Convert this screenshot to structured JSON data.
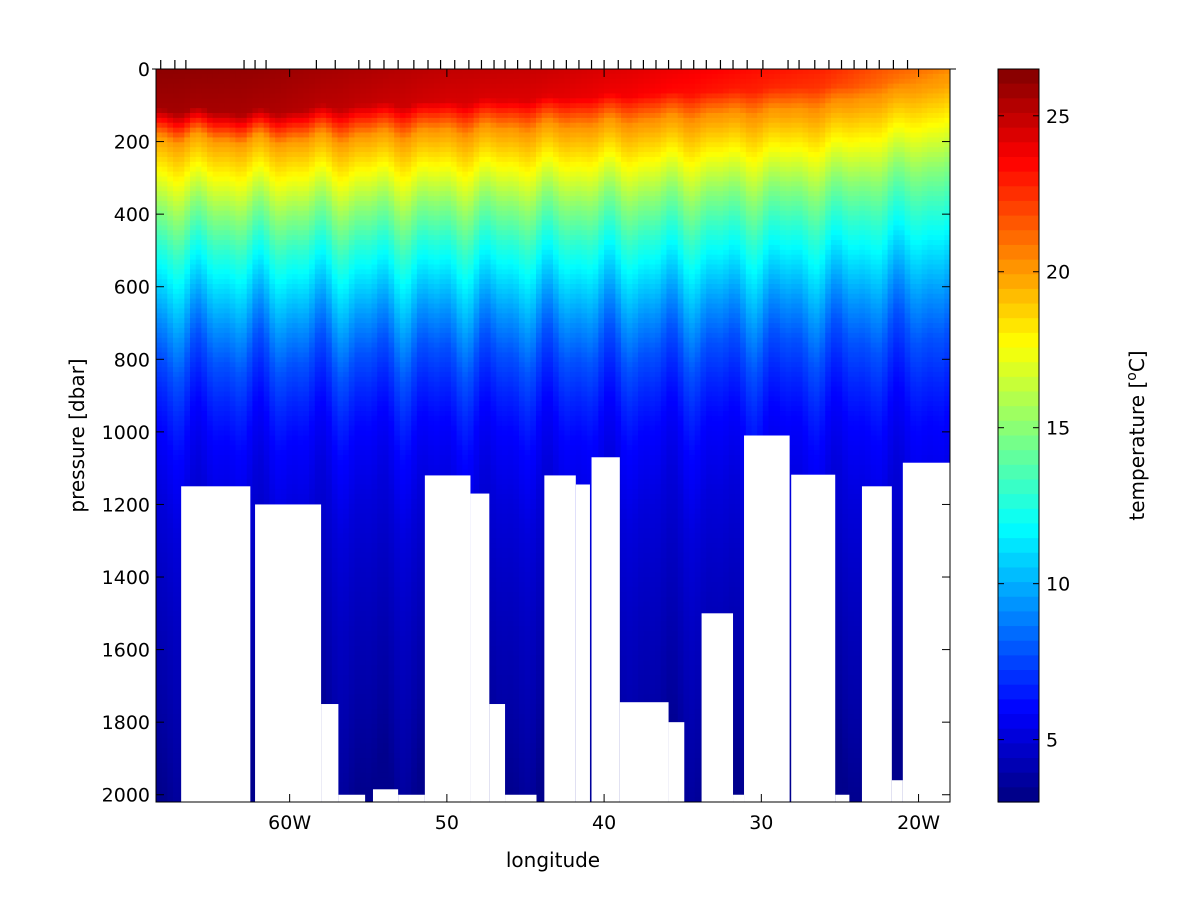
{
  "chart_data": {
    "type": "heatmap",
    "xlabel": "longitude",
    "ylabel": "pressure [dbar]",
    "colorbar_label_main": "temperature [",
    "colorbar_label_sup": "o",
    "colorbar_label_end": "C]",
    "xlim": [
      68.5,
      18
    ],
    "ylim": [
      0,
      2020
    ],
    "x_ticks": [
      {
        "value": 60,
        "label": "60W"
      },
      {
        "value": 50,
        "label": "50"
      },
      {
        "value": 40,
        "label": "40"
      },
      {
        "value": 30,
        "label": "30"
      },
      {
        "value": 20,
        "label": "20W"
      }
    ],
    "y_ticks": [
      {
        "value": 0,
        "label": "0"
      },
      {
        "value": 200,
        "label": "200"
      },
      {
        "value": 400,
        "label": "400"
      },
      {
        "value": 600,
        "label": "600"
      },
      {
        "value": 800,
        "label": "800"
      },
      {
        "value": 1000,
        "label": "1000"
      },
      {
        "value": 1200,
        "label": "1200"
      },
      {
        "value": 1400,
        "label": "1400"
      },
      {
        "value": 1600,
        "label": "1600"
      },
      {
        "value": 1800,
        "label": "1800"
      },
      {
        "value": 2000,
        "label": "2000"
      }
    ],
    "colorbar": {
      "range": [
        3,
        26.5
      ],
      "ticks": [
        {
          "value": 5,
          "label": "5"
        },
        {
          "value": 10,
          "label": "10"
        },
        {
          "value": 15,
          "label": "15"
        },
        {
          "value": 20,
          "label": "20"
        },
        {
          "value": 25,
          "label": "25"
        }
      ],
      "colormap": "jet"
    },
    "station_longitudes": [
      68.2,
      67.3,
      66.6,
      62.9,
      62.2,
      61.5,
      58.3,
      57.1,
      55.6,
      54.9,
      54.0,
      53.1,
      52.1,
      51.2,
      50.4,
      49.5,
      48.6,
      47.8,
      47.0,
      46.3,
      45.5,
      44.7,
      44.0,
      43.2,
      42.4,
      41.6,
      40.8,
      40.0,
      39.1,
      38.3,
      37.5,
      36.7,
      35.9,
      35.1,
      34.3,
      33.5,
      32.6,
      31.8,
      30.9,
      29.9,
      28.3,
      27.6,
      26.6,
      25.7,
      24.9,
      24.1,
      23.3,
      22.5,
      21.6,
      20.7
    ],
    "surface_temperature_profile": [
      {
        "lon": 68.5,
        "t_surface": 26.2,
        "mixed_depth": 110,
        "t20_depth": 190
      },
      {
        "lon": 62.0,
        "t_surface": 26.0,
        "mixed_depth": 120,
        "t20_depth": 200
      },
      {
        "lon": 56.0,
        "t_surface": 25.5,
        "mixed_depth": 100,
        "t20_depth": 190
      },
      {
        "lon": 50.0,
        "t_surface": 25.0,
        "mixed_depth": 90,
        "t20_depth": 175
      },
      {
        "lon": 44.0,
        "t_surface": 24.8,
        "mixed_depth": 80,
        "t20_depth": 165
      },
      {
        "lon": 38.0,
        "t_surface": 24.2,
        "mixed_depth": 70,
        "t20_depth": 150
      },
      {
        "lon": 32.0,
        "t_surface": 23.5,
        "mixed_depth": 60,
        "t20_depth": 130
      },
      {
        "lon": 26.0,
        "t_surface": 22.8,
        "mixed_depth": 50,
        "t20_depth": 110
      },
      {
        "lon": 22.0,
        "t_surface": 21.5,
        "mixed_depth": 40,
        "t20_depth": 70
      },
      {
        "lon": 18.0,
        "t_surface": 20.5,
        "mixed_depth": 15,
        "t20_depth": 30
      }
    ],
    "deep_temperature_profile": [
      {
        "p": 200,
        "t": 19.5
      },
      {
        "p": 300,
        "t": 17.2
      },
      {
        "p": 400,
        "t": 14.8
      },
      {
        "p": 500,
        "t": 12.8
      },
      {
        "p": 600,
        "t": 11.0
      },
      {
        "p": 700,
        "t": 9.3
      },
      {
        "p": 800,
        "t": 7.8
      },
      {
        "p": 900,
        "t": 6.8
      },
      {
        "p": 1000,
        "t": 6.0
      },
      {
        "p": 1200,
        "t": 5.1
      },
      {
        "p": 1400,
        "t": 4.6
      },
      {
        "p": 1600,
        "t": 4.2
      },
      {
        "p": 1800,
        "t": 3.8
      },
      {
        "p": 2020,
        "t": 3.3
      }
    ],
    "no_data_regions": [
      {
        "lon_start": 66.9,
        "lon_end": 62.5,
        "depth_top": 1150
      },
      {
        "lon_start": 62.2,
        "lon_end": 58.0,
        "depth_top": 1200
      },
      {
        "lon_start": 58.0,
        "lon_end": 56.9,
        "depth_top": 1750
      },
      {
        "lon_start": 56.9,
        "lon_end": 55.2,
        "depth_top": 2000
      },
      {
        "lon_start": 54.7,
        "lon_end": 53.1,
        "depth_top": 1985
      },
      {
        "lon_start": 53.1,
        "lon_end": 51.4,
        "depth_top": 2000
      },
      {
        "lon_start": 51.4,
        "lon_end": 48.5,
        "depth_top": 1120
      },
      {
        "lon_start": 48.5,
        "lon_end": 47.3,
        "depth_top": 1170
      },
      {
        "lon_start": 47.3,
        "lon_end": 46.3,
        "depth_top": 1750
      },
      {
        "lon_start": 46.3,
        "lon_end": 44.3,
        "depth_top": 2000
      },
      {
        "lon_start": 43.8,
        "lon_end": 41.8,
        "depth_top": 1120
      },
      {
        "lon_start": 41.8,
        "lon_end": 40.9,
        "depth_top": 1145
      },
      {
        "lon_start": 40.8,
        "lon_end": 39.0,
        "depth_top": 1070
      },
      {
        "lon_start": 39.0,
        "lon_end": 35.9,
        "depth_top": 1745
      },
      {
        "lon_start": 35.9,
        "lon_end": 34.9,
        "depth_top": 1800
      },
      {
        "lon_start": 33.8,
        "lon_end": 31.8,
        "depth_top": 1500
      },
      {
        "lon_start": 31.8,
        "lon_end": 31.1,
        "depth_top": 2000
      },
      {
        "lon_start": 31.1,
        "lon_end": 28.2,
        "depth_top": 1010
      },
      {
        "lon_start": 28.1,
        "lon_end": 25.3,
        "depth_top": 1118
      },
      {
        "lon_start": 25.3,
        "lon_end": 24.4,
        "depth_top": 2000
      },
      {
        "lon_start": 23.6,
        "lon_end": 21.7,
        "depth_top": 1150
      },
      {
        "lon_start": 21.7,
        "lon_end": 21.0,
        "depth_top": 1960
      },
      {
        "lon_start": 21.0,
        "lon_end": 18.0,
        "depth_top": 1085
      }
    ]
  }
}
